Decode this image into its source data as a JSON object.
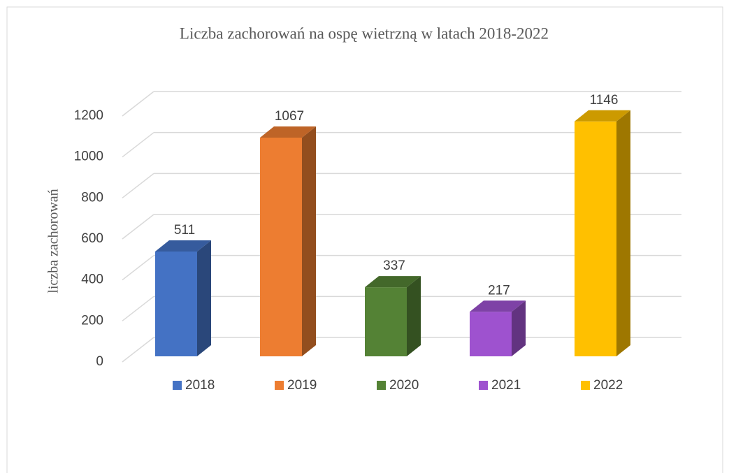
{
  "chart_data": {
    "type": "bar3d",
    "title": "Liczba zachorowań na ospę wietrzną w latach 2018-2022",
    "y_label": "liczba zachorowań",
    "categories": [
      null
    ],
    "series": [
      {
        "name": "2018",
        "color": "#4472c4",
        "values": [
          511
        ]
      },
      {
        "name": "2019",
        "color": "#ed7d31",
        "values": [
          1067
        ]
      },
      {
        "name": "2020",
        "color": "#548235",
        "values": [
          337
        ]
      },
      {
        "name": "2021",
        "color": "#9e52cf",
        "values": [
          217
        ]
      },
      {
        "name": "2022",
        "color": "#ffc000",
        "values": [
          1146
        ]
      }
    ],
    "ylim": [
      0,
      1200
    ],
    "yticks": [
      0,
      200,
      400,
      600,
      800,
      1000,
      1200
    ],
    "grid": true,
    "legend": "bottom"
  }
}
